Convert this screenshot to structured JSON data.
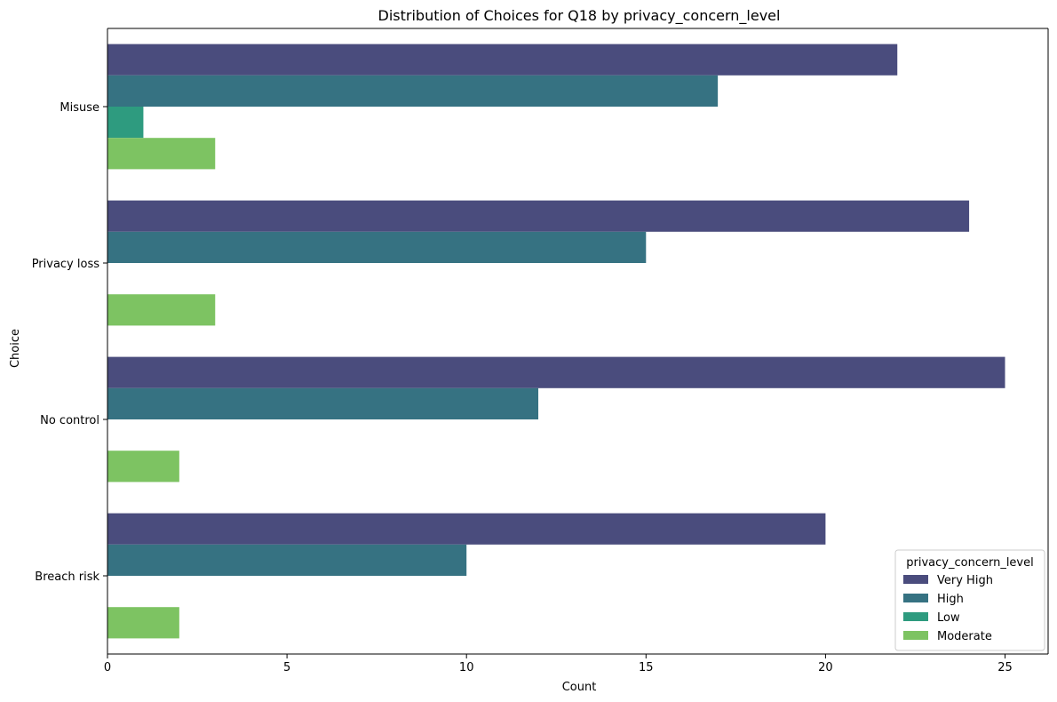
{
  "chart_data": {
    "type": "bar",
    "orientation": "horizontal",
    "title": "Distribution of Choices for Q18 by privacy_concern_level",
    "xlabel": "Count",
    "ylabel": "Choice",
    "categories": [
      "Misuse",
      "Privacy loss",
      "No control",
      "Breach risk"
    ],
    "xlim": [
      0,
      26.2
    ],
    "xticks": [
      0,
      5,
      10,
      15,
      20,
      25
    ],
    "grid": false,
    "legend_title": "privacy_concern_level",
    "legend_position": "bottom-right",
    "series": [
      {
        "name": "Very High",
        "color": "#4a4c7d",
        "values": [
          22,
          24,
          25,
          20
        ]
      },
      {
        "name": "High",
        "color": "#367282",
        "values": [
          17,
          15,
          12,
          10
        ]
      },
      {
        "name": "Low",
        "color": "#2e9b7f",
        "values": [
          1,
          0,
          0,
          0
        ]
      },
      {
        "name": "Moderate",
        "color": "#7dc362",
        "values": [
          3,
          3,
          2,
          2
        ]
      }
    ]
  }
}
